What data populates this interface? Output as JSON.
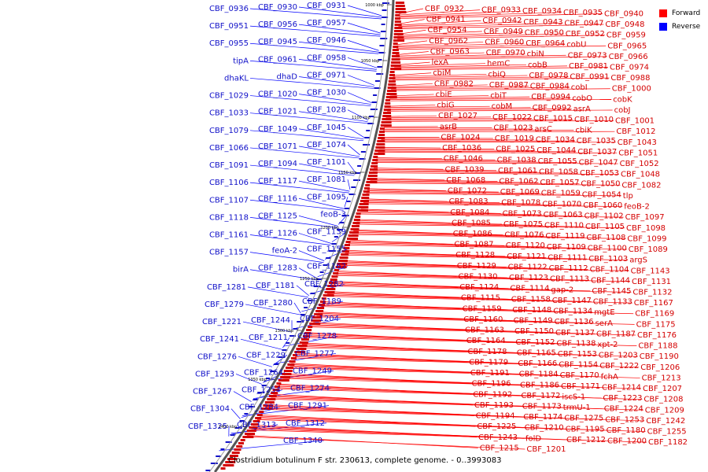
{
  "legend": {
    "forward": {
      "label": "Forward",
      "color": "#ff0000"
    },
    "reverse": {
      "label": "Reverse",
      "color": "#0000ff"
    }
  },
  "caption": "Clostridium botulinum F str. 230613, complete genome. - 0..3993083",
  "ticks": [
    "1000 kbp",
    "1050 kbp",
    "1100 kbp",
    "1150 kbp",
    "1200 kbp",
    "1250 kbp",
    "1300 kbp",
    "1350 kbp",
    "1400 kbp"
  ],
  "reverse_labels": [
    "CBF_0931",
    "CBF_0930",
    "CBF_0936",
    "CBF_0957",
    "CBF_0956",
    "CBF_0951",
    "CBF_0946",
    "CBF_0945",
    "CBF_0955",
    "CBF_0958",
    "CBF_0961",
    "tipA",
    "CBF_0971",
    "dhaD",
    "dhaKL",
    "CBF_1030",
    "CBF_1020",
    "CBF_1029",
    "CBF_1028",
    "CBF_1021",
    "CBF_1033",
    "CBF_1045",
    "CBF_1049",
    "CBF_1079",
    "CBF_1074",
    "CBF_1071",
    "CBF_1066",
    "CBF_1101",
    "CBF_1094",
    "CBF_1091",
    "CBF_1081",
    "CBF_1117",
    "CBF_1106",
    "CBF_1095",
    "CBF_1116",
    "CBF_1107",
    "feoB-3",
    "CBF_1125",
    "CBF_1118",
    "CBF_1139",
    "CBF_1126",
    "CBF_1161",
    "CBF_1155",
    "feoA-2",
    "CBF_1157",
    "CBF_1162",
    "CBF_1283",
    "birA",
    "CBF_1282",
    "CBF_1181",
    "CBF_1281",
    "CBF_1189",
    "CBF_1280",
    "CBF_1279",
    "CBF_1204",
    "CBF_1244",
    "CBF_1221",
    "CBF_1278",
    "CBF_1211",
    "CBF_1241",
    "CBF_1277",
    "CBF_1229",
    "CBF_1276",
    "CBF_1249",
    "CBF_1264",
    "CBF_1293",
    "CBF_1274",
    "CBF_1254",
    "CBF_1267",
    "CBF_1291",
    "CBF_1284",
    "CBF_1304",
    "CBF_1312",
    "CBF_1313",
    "CBF_1325",
    "CBF_1340"
  ],
  "forward_labels": [
    "CBF_0932",
    "CBF_0933",
    "CBF_0934",
    "CBF_0935",
    "CBF_0940",
    "CBF_0941",
    "CBF_0942",
    "CBF_0943",
    "CBF_0947",
    "CBF_0948",
    "CBF_0954",
    "CBF_0949",
    "CBF_0950",
    "CBF_0952",
    "CBF_0959",
    "CBF_0962",
    "CBF_0960",
    "CBF_0964",
    "cobU",
    "CBF_0965",
    "CBF_0963",
    "CBF_0970",
    "cbiN",
    "CBF_0973",
    "CBF_0966",
    "lexA",
    "hemC",
    "cobB",
    "CBF_0981",
    "CBF_0974",
    "cbiM",
    "cbiQ",
    "CBF_0978",
    "CBF_0991",
    "CBF_0988",
    "CBF_0982",
    "CBF_0987",
    "CBF_0984",
    "cobI",
    "CBF_1000",
    "cbiE",
    "cbiT",
    "CBF_0994",
    "cobO",
    "cobK",
    "cbiG",
    "cobM",
    "CBF_0992",
    "asrA",
    "cobJ",
    "CBF_1027",
    "CBF_1022",
    "CBF_1015",
    "CBF_1010",
    "CBF_1001",
    "asrB",
    "CBF_1023",
    "arsC",
    "cbiK",
    "CBF_1012",
    "CBF_1024",
    "CBF_1019",
    "CBF_1034",
    "CBF_1035",
    "CBF_1043",
    "CBF_1036",
    "CBF_1025",
    "CBF_1044",
    "CBF_1037",
    "CBF_1051",
    "CBF_1046",
    "CBF_1038",
    "CBF_1055",
    "CBF_1047",
    "CBF_1052",
    "CBF_1039",
    "CBF_1061",
    "CBF_1058",
    "CBF_1053",
    "CBF_1048",
    "CBF_1068",
    "CBF_1062",
    "CBF_1057",
    "CBF_1050",
    "CBF_1082",
    "CBF_1072",
    "CBF_1069",
    "CBF_1059",
    "CBF_1054",
    "tlp",
    "CBF_1083",
    "CBF_1078",
    "CBF_1070",
    "CBF_1060",
    "feoB-2",
    "CBF_1084",
    "CBF_1073",
    "CBF_1063",
    "CBF_1102",
    "CBF_1097",
    "CBF_1085",
    "CBF_1075",
    "CBF_1110",
    "CBF_1105",
    "CBF_1098",
    "CBF_1086",
    "CBF_1076",
    "CBF_1119",
    "CBF_1108",
    "CBF_1099",
    "CBF_1087",
    "CBF_1120",
    "CBF_1109",
    "CBF_1100",
    "CBF_1089",
    "CBF_1128",
    "CBF_1121",
    "CBF_1111",
    "CBF_1103",
    "argS",
    "CBF_1129",
    "CBF_1122",
    "CBF_1112",
    "CBF_1104",
    "CBF_1143",
    "CBF_1130",
    "CBF_1123",
    "CBF_1113",
    "CBF_1144",
    "CBF_1131",
    "CBF_1124",
    "CBF_1114",
    "gap-2",
    "CBF_1145",
    "CBF_1132",
    "CBF_1115",
    "CBF_1158",
    "CBF_1147",
    "CBF_1133",
    "CBF_1167",
    "CBF_1159",
    "CBF_1148",
    "CBF_1134",
    "mgtE",
    "CBF_1169",
    "CBF_1160",
    "CBF_1149",
    "CBF_1136",
    "serA",
    "CBF_1175",
    "CBF_1163",
    "CBF_1150",
    "CBF_1137",
    "CBF_1187",
    "CBF_1176",
    "CBF_1164",
    "CBF_1152",
    "CBF_1138",
    "xpt-2",
    "CBF_1188",
    "CBF_1178",
    "CBF_1165",
    "CBF_1153",
    "CBF_1203",
    "CBF_1190",
    "CBF_1179",
    "CBF_1166",
    "CBF_1154",
    "CBF_1222",
    "CBF_1206",
    "CBF_1191",
    "CBF_1184",
    "CBF_1170",
    "fchA",
    "CBF_1213",
    "CBF_1196",
    "CBF_1186",
    "CBF_1171",
    "CBF_1214",
    "CBF_1207",
    "CBF_1192",
    "CBF_1172",
    "iscS-1",
    "CBF_1223",
    "CBF_1208",
    "CBF_1193",
    "CBF_1173",
    "trmU-1",
    "CBF_1224",
    "CBF_1209",
    "CBF_1194",
    "CBF_1174",
    "CBF_1275",
    "CBF_1253",
    "CBF_1242",
    "CBF_1225",
    "CBF_1210",
    "CBF_1195",
    "CBF_1180",
    "CBF_1255",
    "CBF_1243",
    "folD",
    "CBF_1212",
    "CBF_1200",
    "CBF_1182",
    "CBF_1215",
    "CBF_1201"
  ]
}
